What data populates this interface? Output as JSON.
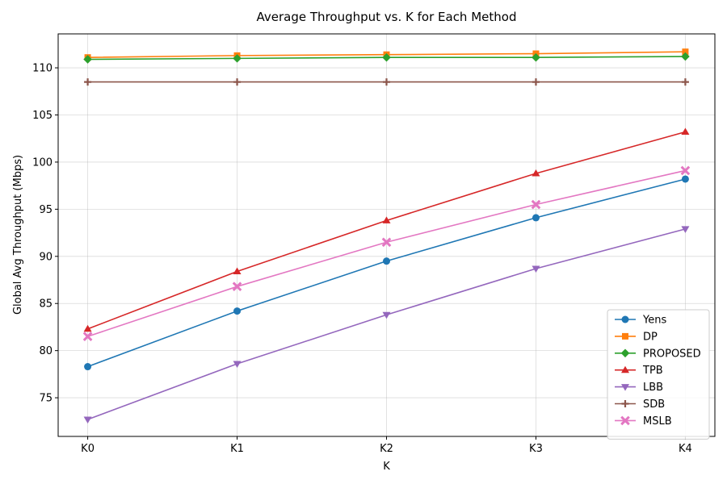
{
  "chart_data": {
    "type": "line",
    "title": "Average Throughput vs. K for Each Method",
    "xlabel": "K",
    "ylabel": "Global Avg Throughput (Mbps)",
    "categories": [
      "K0",
      "K1",
      "K2",
      "K3",
      "K4"
    ],
    "ylim": [
      70.9,
      113.6
    ],
    "yticks": [
      75,
      80,
      85,
      90,
      95,
      100,
      105,
      110
    ],
    "grid": true,
    "legend_position": "lower-right",
    "series": [
      {
        "name": "Yens",
        "color": "#1f77b4",
        "marker": "circle",
        "values": [
          78.3,
          84.2,
          89.5,
          94.1,
          98.2
        ]
      },
      {
        "name": "DP",
        "color": "#ff7f0e",
        "marker": "square",
        "values": [
          111.1,
          111.3,
          111.4,
          111.5,
          111.7
        ]
      },
      {
        "name": "PROPOSED",
        "color": "#2ca02c",
        "marker": "diamond",
        "values": [
          110.9,
          111.0,
          111.1,
          111.1,
          111.2
        ]
      },
      {
        "name": "TPB",
        "color": "#d62728",
        "marker": "triangle-up",
        "values": [
          82.3,
          88.4,
          93.8,
          98.8,
          103.2
        ]
      },
      {
        "name": "LBB",
        "color": "#9467bd",
        "marker": "triangle-down",
        "values": [
          72.7,
          78.6,
          83.8,
          88.7,
          92.9
        ]
      },
      {
        "name": "SDB",
        "color": "#8c564b",
        "marker": "plus",
        "values": [
          108.5,
          108.5,
          108.5,
          108.5,
          108.5
        ]
      },
      {
        "name": "MSLB",
        "color": "#e377c2",
        "marker": "x",
        "values": [
          81.5,
          86.8,
          91.5,
          95.5,
          99.1
        ]
      }
    ]
  }
}
